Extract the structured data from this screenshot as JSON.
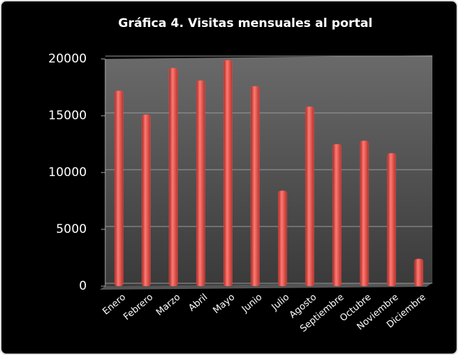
{
  "chart_data": {
    "type": "bar",
    "title": "Gráfica 4. Visitas mensuales al portal",
    "categories": [
      "Enero",
      "Febrero",
      "Marzo",
      "Abril",
      "Mayo",
      "Junio",
      "Julio",
      "Agosto",
      "Septiembre",
      "Octubre",
      "Noviembre",
      "Diciembre"
    ],
    "values": [
      17200,
      15100,
      19200,
      18100,
      19900,
      17600,
      8400,
      15800,
      12500,
      12800,
      11700,
      2400
    ],
    "color": "#e8504a",
    "ylim": [
      0,
      20000
    ],
    "yticks": [
      0,
      5000,
      10000,
      15000,
      20000
    ],
    "grid": true
  }
}
